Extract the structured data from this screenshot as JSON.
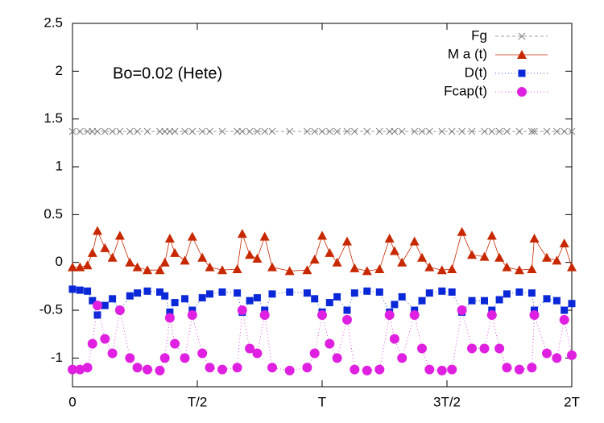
{
  "chart_data": {
    "type": "line",
    "annotation": "Bo=0.02 (Hete)",
    "x": [
      0,
      0.03,
      0.06,
      0.08,
      0.1,
      0.13,
      0.16,
      0.19,
      0.23,
      0.26,
      0.3,
      0.35,
      0.37,
      0.39,
      0.41,
      0.45,
      0.48,
      0.52,
      0.55,
      0.6,
      0.66,
      0.68,
      0.71,
      0.74,
      0.77,
      0.8,
      0.87,
      0.94,
      0.97,
      1.0,
      1.03,
      1.06,
      1.1,
      1.13,
      1.18,
      1.23,
      1.27,
      1.29,
      1.32,
      1.37,
      1.4,
      1.43,
      1.48,
      1.52,
      1.56,
      1.6,
      1.65,
      1.68,
      1.71,
      1.74,
      1.79,
      1.84,
      1.85,
      1.9,
      1.94,
      1.97,
      2.0
    ],
    "series": [
      {
        "name": "Fg",
        "color": "#808080",
        "marker": "cross",
        "dash": "4,3",
        "values": [
          1.37,
          1.37,
          1.37,
          1.37,
          1.37,
          1.37,
          1.37,
          1.37,
          1.37,
          1.37,
          1.37,
          1.37,
          1.37,
          1.37,
          1.37,
          1.37,
          1.37,
          1.37,
          1.37,
          1.37,
          1.37,
          1.37,
          1.37,
          1.37,
          1.37,
          1.37,
          1.37,
          1.37,
          1.37,
          1.37,
          1.37,
          1.37,
          1.37,
          1.37,
          1.37,
          1.37,
          1.37,
          1.37,
          1.37,
          1.37,
          1.37,
          1.37,
          1.37,
          1.37,
          1.37,
          1.37,
          1.37,
          1.37,
          1.37,
          1.37,
          1.37,
          1.37,
          1.37,
          1.37,
          1.37,
          1.37,
          1.37
        ]
      },
      {
        "name": "M a (t)",
        "color": "#c82800",
        "marker": "triangle",
        "dash": "none",
        "values": [
          -0.05,
          -0.05,
          -0.03,
          0.1,
          0.33,
          0.15,
          0.05,
          0.28,
          0.0,
          -0.05,
          -0.08,
          -0.08,
          0.0,
          0.25,
          0.1,
          0.02,
          0.27,
          0.05,
          -0.05,
          -0.08,
          -0.07,
          0.3,
          0.08,
          0.04,
          0.27,
          -0.05,
          -0.09,
          -0.08,
          0.03,
          0.28,
          0.1,
          0.0,
          0.22,
          -0.06,
          -0.09,
          -0.07,
          0.25,
          0.12,
          0.0,
          0.22,
          0.05,
          -0.05,
          -0.08,
          -0.07,
          0.32,
          0.08,
          0.06,
          0.28,
          0.05,
          -0.05,
          -0.08,
          -0.07,
          0.25,
          0.05,
          0.02,
          0.2,
          -0.05
        ]
      },
      {
        "name": "D(t)",
        "color": "#0a28d8",
        "marker": "square",
        "dash": "1,3",
        "values": [
          -0.28,
          -0.29,
          -0.3,
          -0.4,
          -0.55,
          -0.45,
          -0.38,
          -0.5,
          -0.35,
          -0.32,
          -0.3,
          -0.31,
          -0.35,
          -0.52,
          -0.42,
          -0.38,
          -0.5,
          -0.37,
          -0.33,
          -0.31,
          -0.32,
          -0.52,
          -0.4,
          -0.37,
          -0.5,
          -0.33,
          -0.31,
          -0.32,
          -0.38,
          -0.52,
          -0.42,
          -0.36,
          -0.5,
          -0.32,
          -0.3,
          -0.31,
          -0.52,
          -0.44,
          -0.36,
          -0.5,
          -0.4,
          -0.32,
          -0.3,
          -0.31,
          -0.52,
          -0.4,
          -0.4,
          -0.5,
          -0.39,
          -0.33,
          -0.31,
          -0.32,
          -0.5,
          -0.38,
          -0.4,
          -0.5,
          -0.43
        ]
      },
      {
        "name": "Fcap(t)",
        "color": "#e020e0",
        "marker": "circle",
        "dash": "1,3",
        "values": [
          -1.12,
          -1.12,
          -1.1,
          -0.85,
          -0.45,
          -0.8,
          -0.95,
          -0.5,
          -1.0,
          -1.1,
          -1.12,
          -1.13,
          -1.0,
          -0.58,
          -0.85,
          -1.0,
          -0.55,
          -0.95,
          -1.1,
          -1.12,
          -1.1,
          -0.5,
          -0.9,
          -0.95,
          -0.55,
          -1.1,
          -1.13,
          -1.1,
          -0.95,
          -0.55,
          -0.85,
          -1.0,
          -0.6,
          -1.12,
          -1.13,
          -1.12,
          -0.55,
          -0.8,
          -1.0,
          -0.55,
          -0.9,
          -1.12,
          -1.13,
          -1.12,
          -0.5,
          -0.9,
          -0.9,
          -0.55,
          -0.9,
          -1.1,
          -1.12,
          -1.1,
          -0.55,
          -0.95,
          -1.0,
          -0.6,
          -0.97
        ]
      }
    ],
    "xlim": [
      0,
      2
    ],
    "xticks": [
      0,
      {
        "value": 0.5,
        "label": "T/2"
      },
      {
        "value": 1,
        "label": "T"
      },
      {
        "value": 1.5,
        "label": "3T/2"
      },
      {
        "value": 2,
        "label": "2T"
      }
    ],
    "ylim": [
      -1.3,
      2.5
    ],
    "yticks": [
      -1,
      -0.5,
      0,
      0.5,
      1,
      1.5,
      2,
      2.5
    ],
    "legend": "top-right"
  }
}
